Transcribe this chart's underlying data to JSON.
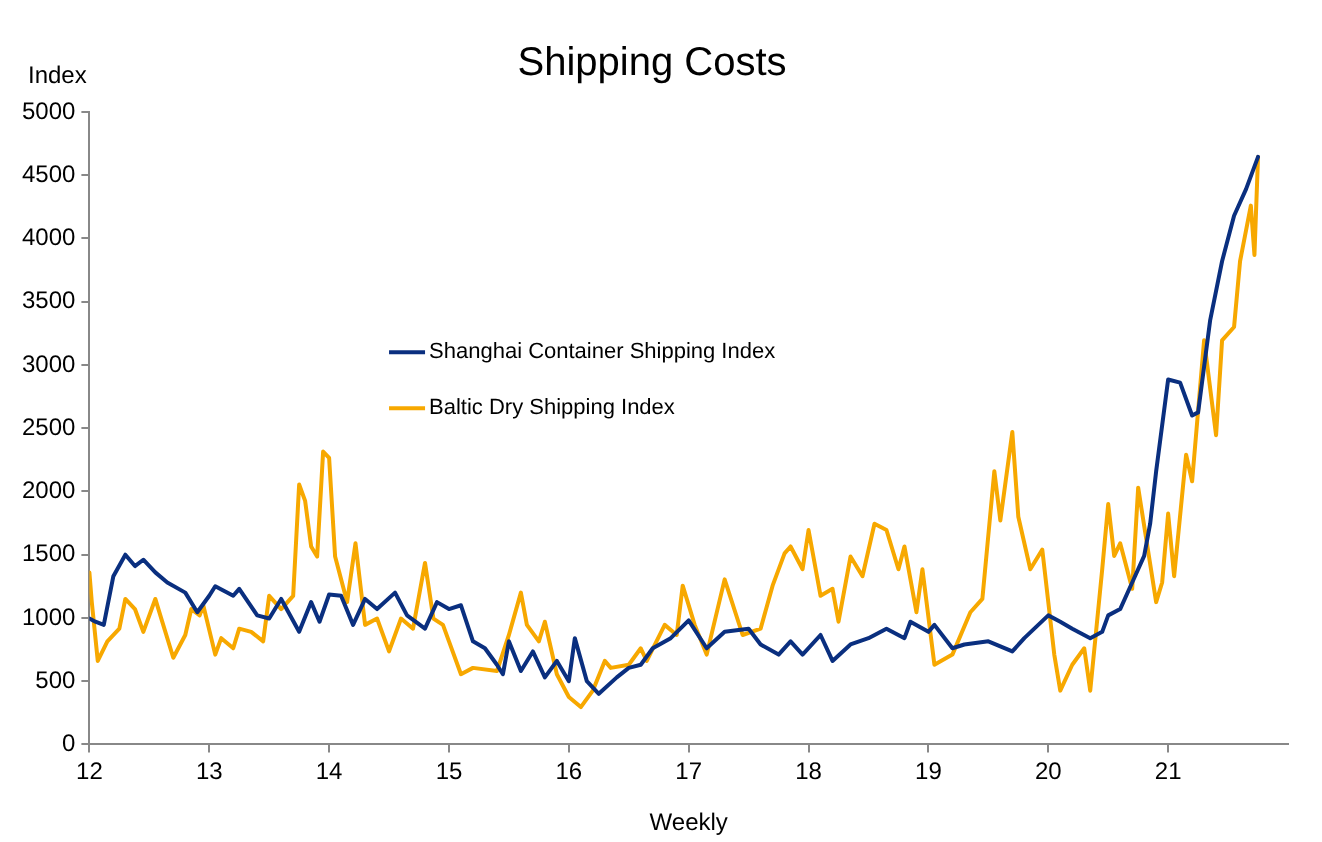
{
  "chart_data": {
    "type": "line",
    "title": "Shipping Costs",
    "xlabel": "Weekly",
    "ylabel": "Index",
    "xlim": [
      12,
      22
    ],
    "xticks": [
      12,
      13,
      14,
      15,
      16,
      17,
      18,
      19,
      20,
      21
    ],
    "ylim": [
      0,
      5000
    ],
    "yticks": [
      0,
      500,
      1000,
      1500,
      2000,
      2500,
      3000,
      3500,
      4000,
      4500,
      5000
    ],
    "grid": false,
    "legend": "left",
    "marker": "none",
    "line_style": "solid",
    "series": [
      {
        "name": "Shanghai Container Shipping Index",
        "color": "#0a2f7f",
        "x": [
          12,
          12.05,
          12.12,
          12.2,
          12.3,
          12.38,
          12.45,
          12.55,
          12.65,
          12.8,
          12.9,
          13,
          13.05,
          13.2,
          13.25,
          13.4,
          13.5,
          13.6,
          13.75,
          13.85,
          13.92,
          14,
          14.1,
          14.2,
          14.3,
          14.4,
          14.55,
          14.65,
          14.8,
          14.9,
          15,
          15.1,
          15.2,
          15.3,
          15.4,
          15.45,
          15.5,
          15.6,
          15.7,
          15.8,
          15.9,
          16,
          16.05,
          16.15,
          16.25,
          16.4,
          16.5,
          16.6,
          16.7,
          16.85,
          17,
          17.15,
          17.3,
          17.5,
          17.6,
          17.75,
          17.85,
          17.95,
          18.1,
          18.2,
          18.35,
          18.5,
          18.65,
          18.8,
          18.85,
          19,
          19.05,
          19.2,
          19.3,
          19.5,
          19.7,
          19.8,
          20,
          20.1,
          20.2,
          20.35,
          20.45,
          20.5,
          20.6,
          20.7,
          20.8,
          20.85,
          20.9,
          21,
          21.1,
          21.2,
          21.25,
          21.35,
          21.45,
          21.55,
          21.65,
          21.75
        ],
        "values": [
          995,
          970,
          945,
          1330,
          1500,
          1410,
          1460,
          1360,
          1280,
          1200,
          1045,
          1175,
          1250,
          1175,
          1230,
          1020,
          995,
          1150,
          890,
          1125,
          970,
          1185,
          1175,
          945,
          1150,
          1070,
          1200,
          1020,
          915,
          1125,
          1070,
          1100,
          815,
          760,
          630,
          555,
          815,
          580,
          735,
          530,
          660,
          500,
          840,
          500,
          400,
          530,
          605,
          630,
          760,
          840,
          980,
          760,
          890,
          915,
          790,
          710,
          815,
          710,
          865,
          660,
          790,
          840,
          915,
          840,
          970,
          890,
          945,
          760,
          790,
          815,
          735,
          840,
          1020,
          970,
          915,
          840,
          890,
          1020,
          1070,
          1280,
          1490,
          1745,
          2160,
          2885,
          2860,
          2600,
          2625,
          3350,
          3820,
          4180,
          4390,
          4645
        ]
      },
      {
        "name": "Baltic Dry Shipping Index",
        "color": "#f7a800",
        "x": [
          12,
          12.02,
          12.07,
          12.15,
          12.25,
          12.3,
          12.38,
          12.45,
          12.55,
          12.6,
          12.7,
          12.8,
          12.85,
          12.92,
          12.95,
          13.05,
          13.1,
          13.2,
          13.25,
          13.35,
          13.45,
          13.5,
          13.6,
          13.7,
          13.75,
          13.8,
          13.85,
          13.9,
          13.95,
          14,
          14.05,
          14.15,
          14.22,
          14.3,
          14.4,
          14.5,
          14.6,
          14.7,
          14.8,
          14.87,
          14.95,
          15,
          15.1,
          15.2,
          15.4,
          15.5,
          15.6,
          15.65,
          15.75,
          15.8,
          15.9,
          16,
          16.1,
          16.2,
          16.3,
          16.35,
          16.5,
          16.6,
          16.65,
          16.8,
          16.9,
          16.95,
          17.05,
          17.15,
          17.3,
          17.45,
          17.6,
          17.7,
          17.8,
          17.85,
          17.95,
          18,
          18.1,
          18.2,
          18.25,
          18.35,
          18.45,
          18.55,
          18.65,
          18.75,
          18.8,
          18.9,
          18.95,
          19.05,
          19.2,
          19.35,
          19.45,
          19.55,
          19.6,
          19.7,
          19.75,
          19.85,
          19.95,
          20.05,
          20.1,
          20.2,
          20.3,
          20.35,
          20.45,
          20.5,
          20.55,
          20.6,
          20.7,
          20.75,
          20.9,
          20.95,
          21,
          21.05,
          21.15,
          21.2,
          21.3,
          21.4,
          21.45,
          21.55,
          21.6,
          21.69,
          21.72,
          21.75
        ],
        "values": [
          1360,
          1125,
          660,
          815,
          915,
          1150,
          1070,
          890,
          1150,
          995,
          685,
          865,
          1070,
          1020,
          1100,
          710,
          840,
          760,
          915,
          890,
          815,
          1175,
          1070,
          1175,
          2055,
          1925,
          1565,
          1485,
          2315,
          2265,
          1485,
          1125,
          1590,
          945,
          995,
          735,
          995,
          915,
          1435,
          995,
          945,
          815,
          555,
          605,
          580,
          865,
          1200,
          945,
          815,
          970,
          555,
          375,
          295,
          425,
          660,
          605,
          630,
          760,
          660,
          945,
          865,
          1255,
          945,
          710,
          1305,
          865,
          915,
          1255,
          1510,
          1565,
          1385,
          1695,
          1175,
          1230,
          970,
          1485,
          1330,
          1745,
          1695,
          1385,
          1565,
          1045,
          1385,
          630,
          710,
          1045,
          1150,
          2160,
          1770,
          2470,
          1800,
          1385,
          1540,
          710,
          425,
          630,
          760,
          425,
          1385,
          1900,
          1490,
          1590,
          1230,
          2030,
          1125,
          1280,
          1825,
          1330,
          2290,
          2080,
          3195,
          2445,
          3195,
          3300,
          3820,
          4260,
          3870,
          4645
        ]
      }
    ]
  }
}
